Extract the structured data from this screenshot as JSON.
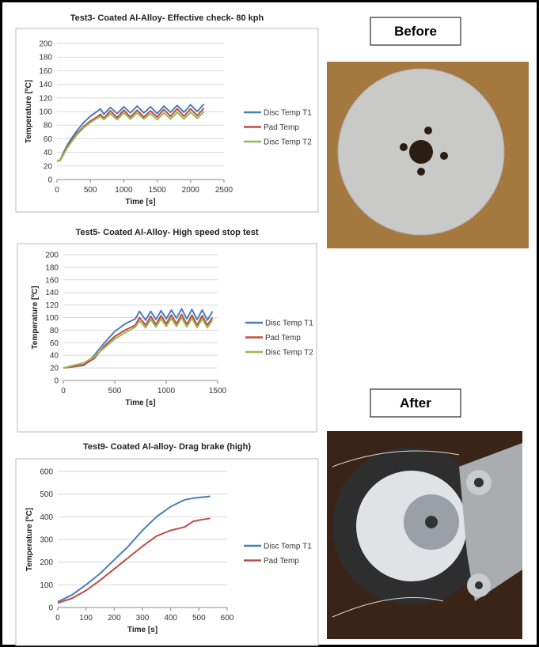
{
  "chart_data": [
    {
      "type": "line",
      "title": "Test3- Coated Al-Alloy- Effective check- 80 kph",
      "xlabel": "Time [s]",
      "ylabel": "Temperature [ºC]",
      "x": [
        0,
        50,
        100,
        150,
        200,
        300,
        400,
        500,
        600,
        650,
        700,
        800,
        900,
        1000,
        1100,
        1200,
        1300,
        1400,
        1500,
        1600,
        1700,
        1800,
        1900,
        2000,
        2100,
        2200
      ],
      "series": [
        {
          "name": "Disc Temp T1",
          "color": "#4a7ebb",
          "values": [
            27,
            29,
            40,
            50,
            58,
            72,
            84,
            93,
            100,
            104,
            96,
            106,
            97,
            107,
            98,
            108,
            98,
            107,
            97,
            108,
            99,
            109,
            99,
            110,
            100,
            111
          ]
        },
        {
          "name": "Pad Temp",
          "color": "#be4b48",
          "values": [
            27,
            28,
            38,
            47,
            55,
            68,
            78,
            86,
            92,
            96,
            90,
            101,
            91,
            102,
            92,
            102,
            92,
            101,
            92,
            103,
            93,
            104,
            93,
            104,
            94,
            105
          ]
        },
        {
          "name": "Disc Temp T2",
          "color": "#98b954",
          "values": [
            27,
            28,
            37,
            46,
            53,
            66,
            76,
            84,
            90,
            93,
            88,
            97,
            88,
            98,
            89,
            98,
            89,
            97,
            88,
            98,
            89,
            99,
            89,
            99,
            90,
            100
          ]
        }
      ],
      "xlim": [
        0,
        2500
      ],
      "xticks": [
        0,
        500,
        1000,
        1500,
        2000,
        2500
      ],
      "ylim": [
        0,
        200
      ],
      "yticks": [
        0,
        20,
        40,
        60,
        80,
        100,
        120,
        140,
        160,
        180,
        200
      ],
      "grid": true,
      "legend": "right"
    },
    {
      "type": "line",
      "title": "Test5- Coated Al-Alloy- High speed stop test",
      "xlabel": "Time [s]",
      "ylabel": "Temperature [ºC]",
      "x": [
        0,
        100,
        200,
        300,
        400,
        500,
        600,
        700,
        740,
        800,
        850,
        900,
        950,
        1000,
        1050,
        1100,
        1150,
        1200,
        1250,
        1300,
        1350,
        1400,
        1450
      ],
      "series": [
        {
          "name": "Disc Temp T1",
          "color": "#4a7ebb",
          "values": [
            20,
            22,
            24,
            40,
            60,
            78,
            90,
            98,
            110,
            96,
            110,
            97,
            111,
            98,
            112,
            99,
            114,
            98,
            113,
            97,
            112,
            96,
            110
          ]
        },
        {
          "name": "Pad Temp",
          "color": "#be4b48",
          "values": [
            20,
            22,
            25,
            35,
            55,
            70,
            80,
            88,
            100,
            88,
            102,
            89,
            103,
            90,
            104,
            90,
            105,
            89,
            104,
            88,
            103,
            88,
            100
          ]
        },
        {
          "name": "Disc Temp T2",
          "color": "#98b954",
          "values": [
            20,
            24,
            28,
            38,
            52,
            66,
            76,
            85,
            95,
            84,
            97,
            85,
            98,
            86,
            99,
            86,
            100,
            85,
            99,
            84,
            98,
            84,
            96
          ]
        }
      ],
      "xlim": [
        0,
        1500
      ],
      "xticks": [
        0,
        500,
        1000,
        1500
      ],
      "ylim": [
        0,
        200
      ],
      "yticks": [
        0,
        20,
        40,
        60,
        80,
        100,
        120,
        140,
        160,
        180,
        200
      ],
      "grid": true,
      "legend": "right"
    },
    {
      "type": "line",
      "title": "Test9- Coated Al-alloy- Drag brake (high)",
      "xlabel": "Time [s]",
      "ylabel": "Temperature [ºC]",
      "x": [
        0,
        50,
        100,
        150,
        200,
        250,
        300,
        350,
        400,
        450,
        480,
        500,
        540
      ],
      "series": [
        {
          "name": "Disc Temp T1",
          "color": "#4a7ebb",
          "values": [
            25,
            55,
            100,
            150,
            210,
            270,
            340,
            400,
            445,
            475,
            482,
            485,
            490
          ]
        },
        {
          "name": "Pad Temp",
          "color": "#be4b48",
          "values": [
            20,
            40,
            75,
            120,
            170,
            220,
            270,
            315,
            340,
            355,
            380,
            385,
            393
          ]
        }
      ],
      "xlim": [
        0,
        600
      ],
      "xticks": [
        0,
        100,
        200,
        300,
        400,
        500,
        600
      ],
      "ylim": [
        0,
        600
      ],
      "yticks": [
        0,
        100,
        200,
        300,
        400,
        500,
        600
      ],
      "grid": true,
      "legend": "right"
    }
  ],
  "labels": {
    "before": "Before",
    "after": "After"
  }
}
